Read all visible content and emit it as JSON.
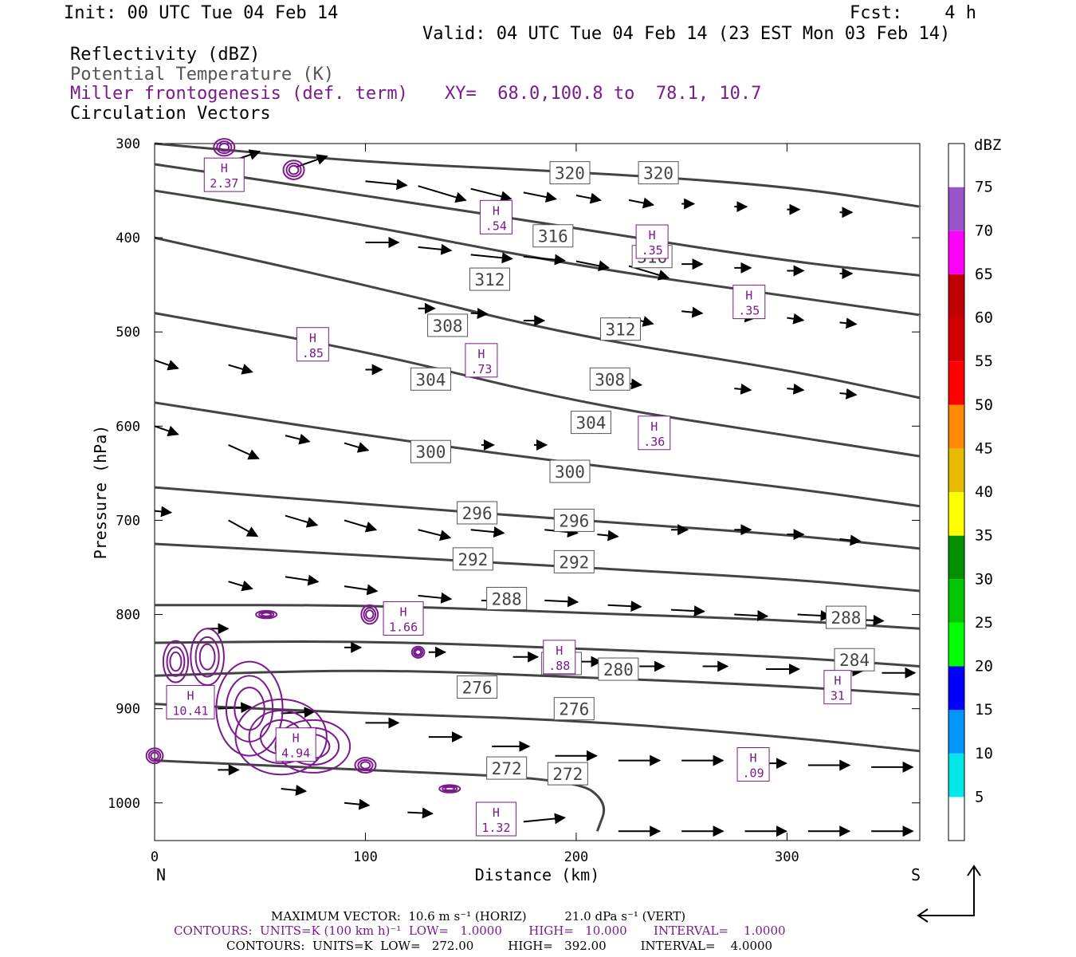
{
  "header": {
    "init": "Init: 00 UTC Tue 04 Feb 14",
    "fcst": "Fcst:    4 h",
    "valid": "Valid: 04 UTC Tue 04 Feb 14 (23 EST Mon 03 Feb 14)"
  },
  "legend": {
    "reflectivity": "Reflectivity (dBZ)",
    "theta": "Potential Temperature (K)",
    "miller": "Miller frontogenesis (def. term)",
    "xy": "XY=  68.0,100.8 to  78.1, 10.7",
    "circulation": "Circulation Vectors"
  },
  "colors": {
    "theta_contour": "#444444",
    "frontogenesis": "#7a1a8c",
    "vector": "#000000"
  },
  "chart_data": {
    "type": "cross-section",
    "xlabel": "Distance (km)",
    "ylabel": "Pressure (hPa)",
    "xlim": [
      0,
      363
    ],
    "ylim": [
      1040,
      300
    ],
    "x_ticks": [
      0,
      100,
      200,
      300
    ],
    "y_ticks": [
      300,
      400,
      500,
      600,
      700,
      800,
      900,
      1000
    ],
    "left_end_label": "N",
    "right_end_label": "S",
    "theta_contours": [
      {
        "value": 320,
        "points": [
          [
            0,
            300
          ],
          [
            100,
            320
          ],
          [
            200,
            330
          ],
          [
            300,
            345
          ],
          [
            363,
            367
          ]
        ]
      },
      {
        "value": 316,
        "points": [
          [
            0,
            322
          ],
          [
            100,
            355
          ],
          [
            200,
            390
          ],
          [
            300,
            425
          ],
          [
            363,
            440
          ]
        ]
      },
      {
        "value": 312,
        "points": [
          [
            0,
            350
          ],
          [
            80,
            378
          ],
          [
            200,
            430
          ],
          [
            300,
            462
          ],
          [
            363,
            482
          ]
        ]
      },
      {
        "value": 308,
        "points": [
          [
            0,
            400
          ],
          [
            100,
            450
          ],
          [
            200,
            505
          ],
          [
            300,
            540
          ],
          [
            363,
            570
          ]
        ]
      },
      {
        "value": 304,
        "points": [
          [
            0,
            480
          ],
          [
            100,
            520
          ],
          [
            200,
            575
          ],
          [
            300,
            610
          ],
          [
            363,
            632
          ]
        ]
      },
      {
        "value": 300,
        "points": [
          [
            0,
            575
          ],
          [
            100,
            610
          ],
          [
            200,
            640
          ],
          [
            300,
            665
          ],
          [
            363,
            685
          ]
        ]
      },
      {
        "value": 296,
        "points": [
          [
            0,
            665
          ],
          [
            100,
            683
          ],
          [
            200,
            700
          ],
          [
            300,
            715
          ],
          [
            363,
            730
          ]
        ]
      },
      {
        "value": 292,
        "points": [
          [
            0,
            725
          ],
          [
            100,
            737
          ],
          [
            200,
            750
          ],
          [
            300,
            762
          ],
          [
            363,
            775
          ]
        ]
      },
      {
        "value": 288,
        "points": [
          [
            0,
            790
          ],
          [
            100,
            790
          ],
          [
            200,
            798
          ],
          [
            300,
            806
          ],
          [
            363,
            815
          ]
        ]
      },
      {
        "value": 284,
        "points": [
          [
            0,
            830
          ],
          [
            100,
            828
          ],
          [
            200,
            836
          ],
          [
            300,
            845
          ],
          [
            363,
            855
          ]
        ]
      },
      {
        "value": 280,
        "points": [
          [
            0,
            865
          ],
          [
            100,
            858
          ],
          [
            200,
            866
          ],
          [
            300,
            876
          ],
          [
            363,
            885
          ]
        ]
      },
      {
        "value": 276,
        "points": [
          [
            0,
            895
          ],
          [
            100,
            905
          ],
          [
            200,
            912
          ],
          [
            300,
            930
          ],
          [
            363,
            945
          ]
        ]
      },
      {
        "value": 272,
        "points": [
          [
            0,
            955
          ],
          [
            100,
            965
          ],
          [
            200,
            975
          ],
          [
            215,
            1000
          ],
          [
            210,
            1030
          ]
        ]
      }
    ],
    "theta_labels": [
      {
        "text": "320",
        "x": 197,
        "p": 331
      },
      {
        "text": "320",
        "x": 239,
        "p": 331
      },
      {
        "text": "316",
        "x": 189,
        "p": 398
      },
      {
        "text": "316",
        "x": 236,
        "p": 420
      },
      {
        "text": "312",
        "x": 159,
        "p": 444
      },
      {
        "text": "312",
        "x": 221,
        "p": 497
      },
      {
        "text": "308",
        "x": 139,
        "p": 493
      },
      {
        "text": "308",
        "x": 216,
        "p": 550
      },
      {
        "text": "304",
        "x": 131,
        "p": 550
      },
      {
        "text": "304",
        "x": 207,
        "p": 596
      },
      {
        "text": "300",
        "x": 131,
        "p": 627
      },
      {
        "text": "300",
        "x": 197,
        "p": 648
      },
      {
        "text": "296",
        "x": 153,
        "p": 692
      },
      {
        "text": "296",
        "x": 199,
        "p": 700
      },
      {
        "text": "292",
        "x": 151,
        "p": 741
      },
      {
        "text": "292",
        "x": 199,
        "p": 744
      },
      {
        "text": "288",
        "x": 167,
        "p": 783
      },
      {
        "text": "288",
        "x": 328,
        "p": 803
      },
      {
        "text": "284",
        "x": 332,
        "p": 848
      },
      {
        "text": "280",
        "x": 193,
        "p": 852
      },
      {
        "text": "280",
        "x": 220,
        "p": 858
      },
      {
        "text": "276",
        "x": 153,
        "p": 877
      },
      {
        "text": "276",
        "x": 199,
        "p": 900
      },
      {
        "text": "272",
        "x": 167,
        "p": 963
      },
      {
        "text": "272",
        "x": 196,
        "p": 969
      }
    ],
    "frontogenesis_maxima": [
      {
        "label": "H",
        "value": "2.37",
        "x": 33,
        "p": 334
      },
      {
        "label": "H",
        "value": ".54",
        "x": 162,
        "p": 379
      },
      {
        "label": "H",
        "value": ".35",
        "x": 236,
        "p": 405
      },
      {
        "label": "H",
        "value": ".35",
        "x": 282,
        "p": 469
      },
      {
        "label": "H",
        "value": ".85",
        "x": 75,
        "p": 514
      },
      {
        "label": "H",
        "value": ".73",
        "x": 155,
        "p": 531
      },
      {
        "label": "H",
        "value": ".36",
        "x": 237,
        "p": 608
      },
      {
        "label": "H",
        "value": "1.66",
        "x": 118,
        "p": 805
      },
      {
        "label": "H",
        "value": ".88",
        "x": 192,
        "p": 846
      },
      {
        "label": "H",
        "value": "31",
        "x": 324,
        "p": 878
      },
      {
        "label": "H",
        "value": "10.41",
        "x": 17,
        "p": 894
      },
      {
        "label": "H",
        "value": "4.94",
        "x": 67,
        "p": 939
      },
      {
        "label": "H",
        "value": ".09",
        "x": 284,
        "p": 960
      },
      {
        "label": "H",
        "value": "1.32",
        "x": 162,
        "p": 1018
      }
    ],
    "vectors": [
      [
        35,
        320,
        8,
        -0.35
      ],
      [
        67,
        325,
        8,
        -0.35
      ],
      [
        100,
        340,
        10,
        0.1
      ],
      [
        125,
        345,
        12,
        0.3
      ],
      [
        150,
        348,
        10,
        0.25
      ],
      [
        175,
        352,
        8,
        0.2
      ],
      [
        200,
        355,
        6,
        0.2
      ],
      [
        225,
        360,
        6,
        0.2
      ],
      [
        250,
        364,
        3,
        0
      ],
      [
        275,
        367,
        3,
        0
      ],
      [
        300,
        370,
        3,
        0
      ],
      [
        325,
        373,
        3,
        0
      ],
      [
        100,
        405,
        8,
        0
      ],
      [
        125,
        410,
        8,
        0.1
      ],
      [
        150,
        418,
        10,
        0.1
      ],
      [
        175,
        420,
        10,
        0.1
      ],
      [
        200,
        425,
        8,
        0.2
      ],
      [
        225,
        430,
        10,
        0.3
      ],
      [
        250,
        428,
        5,
        0
      ],
      [
        275,
        432,
        4,
        0
      ],
      [
        300,
        435,
        4,
        0
      ],
      [
        325,
        438,
        3,
        0
      ],
      [
        125,
        475,
        4,
        0
      ],
      [
        150,
        480,
        4,
        0.05
      ],
      [
        175,
        488,
        5,
        0
      ],
      [
        225,
        485,
        6,
        0.25
      ],
      [
        250,
        478,
        5,
        0.1
      ],
      [
        275,
        483,
        5,
        0.1
      ],
      [
        300,
        485,
        4,
        0.15
      ],
      [
        325,
        490,
        4,
        0.1
      ],
      [
        0,
        530,
        6,
        0.35
      ],
      [
        35,
        535,
        6,
        0.3
      ],
      [
        100,
        540,
        4,
        0
      ],
      [
        225,
        555,
        3,
        0.1
      ],
      [
        275,
        560,
        4,
        0.1
      ],
      [
        300,
        560,
        4,
        0.1
      ],
      [
        325,
        565,
        4,
        0.1
      ],
      [
        0,
        600,
        6,
        0.35
      ],
      [
        35,
        620,
        8,
        0.45
      ],
      [
        62,
        610,
        6,
        0.25
      ],
      [
        90,
        618,
        6,
        0.3
      ],
      [
        125,
        620,
        5,
        0.1
      ],
      [
        155,
        620,
        3,
        0
      ],
      [
        180,
        620,
        3,
        0
      ],
      [
        35,
        700,
        8,
        0.55
      ],
      [
        0,
        690,
        4,
        0.1
      ],
      [
        62,
        695,
        8,
        0.3
      ],
      [
        90,
        700,
        8,
        0.3
      ],
      [
        125,
        710,
        8,
        0.25
      ],
      [
        150,
        710,
        8,
        0.1
      ],
      [
        185,
        710,
        8,
        0.1
      ],
      [
        210,
        715,
        5,
        0.1
      ],
      [
        245,
        710,
        4,
        0
      ],
      [
        275,
        710,
        4,
        0
      ],
      [
        300,
        715,
        4,
        0
      ],
      [
        325,
        720,
        5,
        0.1
      ],
      [
        35,
        765,
        6,
        0.3
      ],
      [
        62,
        760,
        8,
        0.15
      ],
      [
        90,
        770,
        8,
        0.15
      ],
      [
        125,
        780,
        8,
        0.1
      ],
      [
        155,
        785,
        7,
        0.05
      ],
      [
        185,
        785,
        8,
        0.05
      ],
      [
        215,
        790,
        8,
        0.05
      ],
      [
        245,
        795,
        8,
        0.05
      ],
      [
        275,
        800,
        8,
        0.05
      ],
      [
        305,
        800,
        8,
        0.05
      ],
      [
        330,
        805,
        8,
        0.05
      ],
      [
        25,
        815,
        5,
        0
      ],
      [
        90,
        835,
        4,
        0
      ],
      [
        130,
        840,
        4,
        0
      ],
      [
        170,
        845,
        6,
        0
      ],
      [
        200,
        850,
        6,
        0
      ],
      [
        230,
        855,
        6,
        0
      ],
      [
        260,
        855,
        6,
        0
      ],
      [
        290,
        858,
        8,
        0
      ],
      [
        320,
        860,
        8,
        0
      ],
      [
        345,
        862,
        8,
        0
      ],
      [
        30,
        900,
        8,
        -0.05
      ],
      [
        60,
        905,
        8,
        -0.05
      ],
      [
        100,
        915,
        8,
        0
      ],
      [
        130,
        930,
        8,
        0
      ],
      [
        160,
        940,
        9,
        0
      ],
      [
        190,
        950,
        10,
        0
      ],
      [
        220,
        955,
        10,
        0
      ],
      [
        250,
        955,
        10,
        0
      ],
      [
        280,
        958,
        10,
        0
      ],
      [
        310,
        960,
        10,
        0
      ],
      [
        340,
        962,
        10,
        0
      ],
      [
        30,
        965,
        5,
        0
      ],
      [
        60,
        985,
        6,
        0.1
      ],
      [
        90,
        1000,
        6,
        0.1
      ],
      [
        120,
        1010,
        6,
        0.05
      ],
      [
        175,
        1020,
        10,
        -0.1
      ],
      [
        220,
        1030,
        10,
        0
      ],
      [
        250,
        1030,
        10,
        0
      ],
      [
        280,
        1030,
        10,
        0
      ],
      [
        310,
        1030,
        10,
        0
      ],
      [
        340,
        1030,
        10,
        0
      ]
    ],
    "colorbar": {
      "title": "dBZ",
      "levels": [
        5,
        10,
        15,
        20,
        25,
        30,
        35,
        40,
        45,
        50,
        55,
        60,
        65,
        70,
        75
      ],
      "colors": [
        "#ffffff",
        "#00e8e8",
        "#0096ff",
        "#0000ff",
        "#00ff00",
        "#00c800",
        "#009100",
        "#ffff00",
        "#e5bc00",
        "#ff8c00",
        "#ff0000",
        "#d60000",
        "#c00000",
        "#ff00ff",
        "#9955c9",
        "#ffffff"
      ]
    },
    "footer": {
      "max_vector": "MAXIMUM VECTOR:  10.6 m s⁻¹ (HORIZ)          21.0 dPa s⁻¹ (VERT)",
      "contours_purple": "CONTOURS:  UNITS=K (100 km h)⁻¹  LOW=   1.0000       HIGH=   10.000       INTERVAL=    1.0000",
      "contours_black": "CONTOURS:  UNITS=K  LOW=   272.00         HIGH=   392.00         INTERVAL=    4.0000"
    }
  }
}
